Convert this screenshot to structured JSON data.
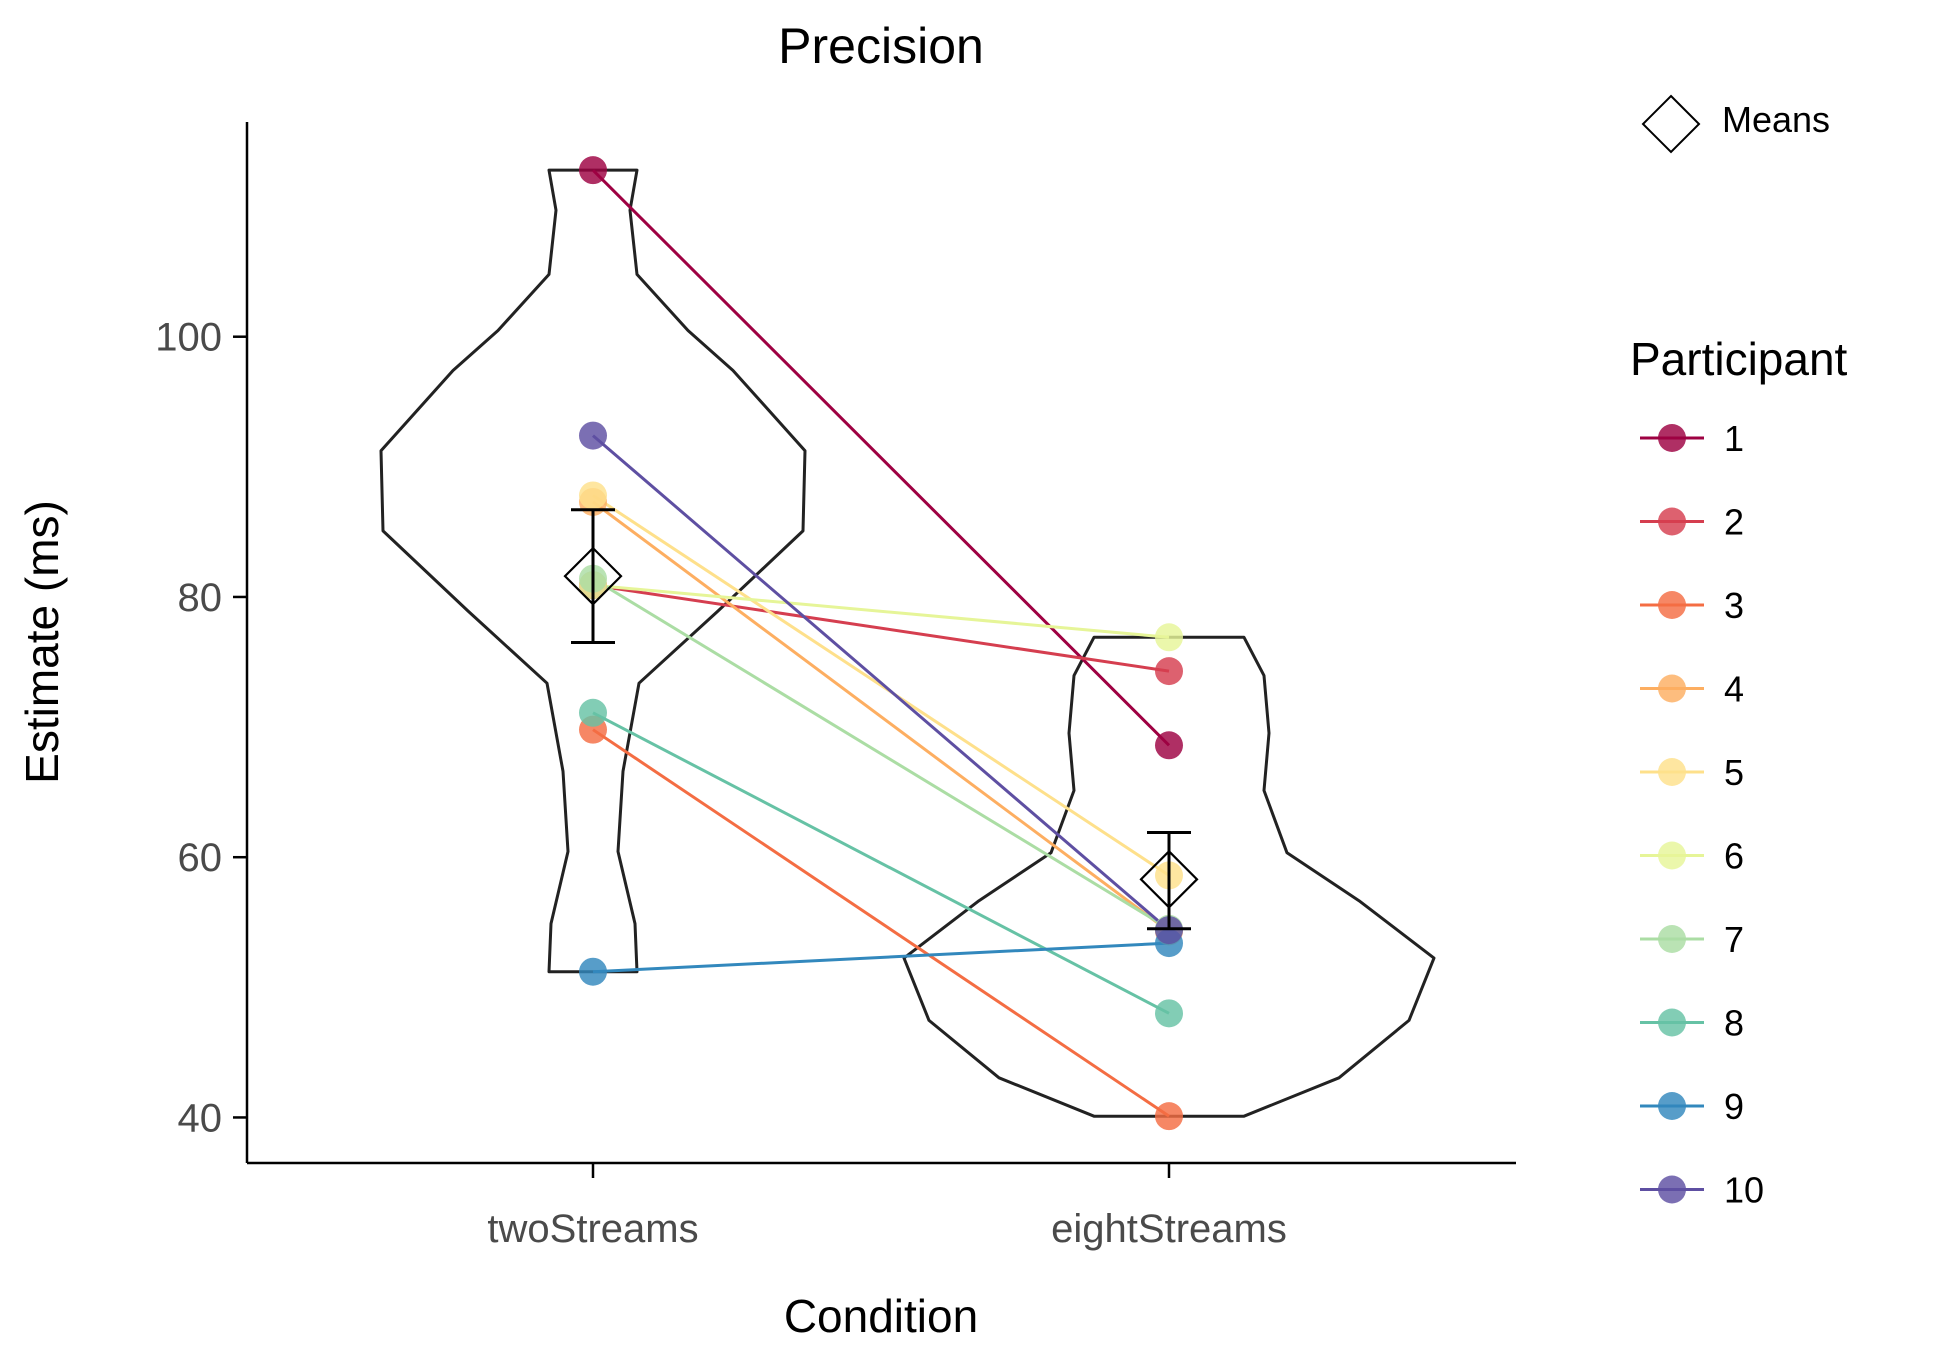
{
  "chart_data": {
    "type": "scatter",
    "title": "Precision",
    "xlabel": "Condition",
    "ylabel": "Estimate (ms)",
    "categories": [
      "twoStreams",
      "eightStreams"
    ],
    "y_ticks": [
      40,
      60,
      80,
      100
    ],
    "ylim": [
      36.5,
      116.5
    ],
    "grid": false,
    "legend_placement": "right",
    "legend_title": "Participant",
    "means_legend_label": "Means",
    "series": [
      {
        "name": "1",
        "color": "#9E0142",
        "values": [
          112.8,
          68.6
        ]
      },
      {
        "name": "2",
        "color": "#D53E4F",
        "values": [
          80.9,
          74.3
        ]
      },
      {
        "name": "3",
        "color": "#F46D43",
        "values": [
          69.8,
          40.1
        ]
      },
      {
        "name": "4",
        "color": "#FDAE61",
        "values": [
          87.3,
          54.3
        ]
      },
      {
        "name": "5",
        "color": "#FEE08B",
        "values": [
          87.8,
          58.6
        ]
      },
      {
        "name": "6",
        "color": "#E6F598",
        "values": [
          80.9,
          76.9
        ]
      },
      {
        "name": "7",
        "color": "#ABDDA4",
        "values": [
          81.4,
          54.5
        ]
      },
      {
        "name": "8",
        "color": "#66C2A5",
        "values": [
          71.1,
          48.0
        ]
      },
      {
        "name": "9",
        "color": "#3288BD",
        "values": [
          51.2,
          53.4
        ]
      },
      {
        "name": "10",
        "color": "#5E4FA2",
        "values": [
          92.4,
          54.4
        ]
      }
    ],
    "means": [
      {
        "category": "twoStreams",
        "mean": 81.6,
        "error_low": 76.5,
        "error_high": 86.7
      },
      {
        "category": "eightStreams",
        "mean": 58.3,
        "error_low": 54.5,
        "error_high": 61.9
      }
    ],
    "violins": [
      {
        "category": "twoStreams",
        "y_min": 51.2,
        "y_max": 112.8
      },
      {
        "category": "eightStreams",
        "y_min": 40.1,
        "y_max": 76.9
      }
    ]
  }
}
